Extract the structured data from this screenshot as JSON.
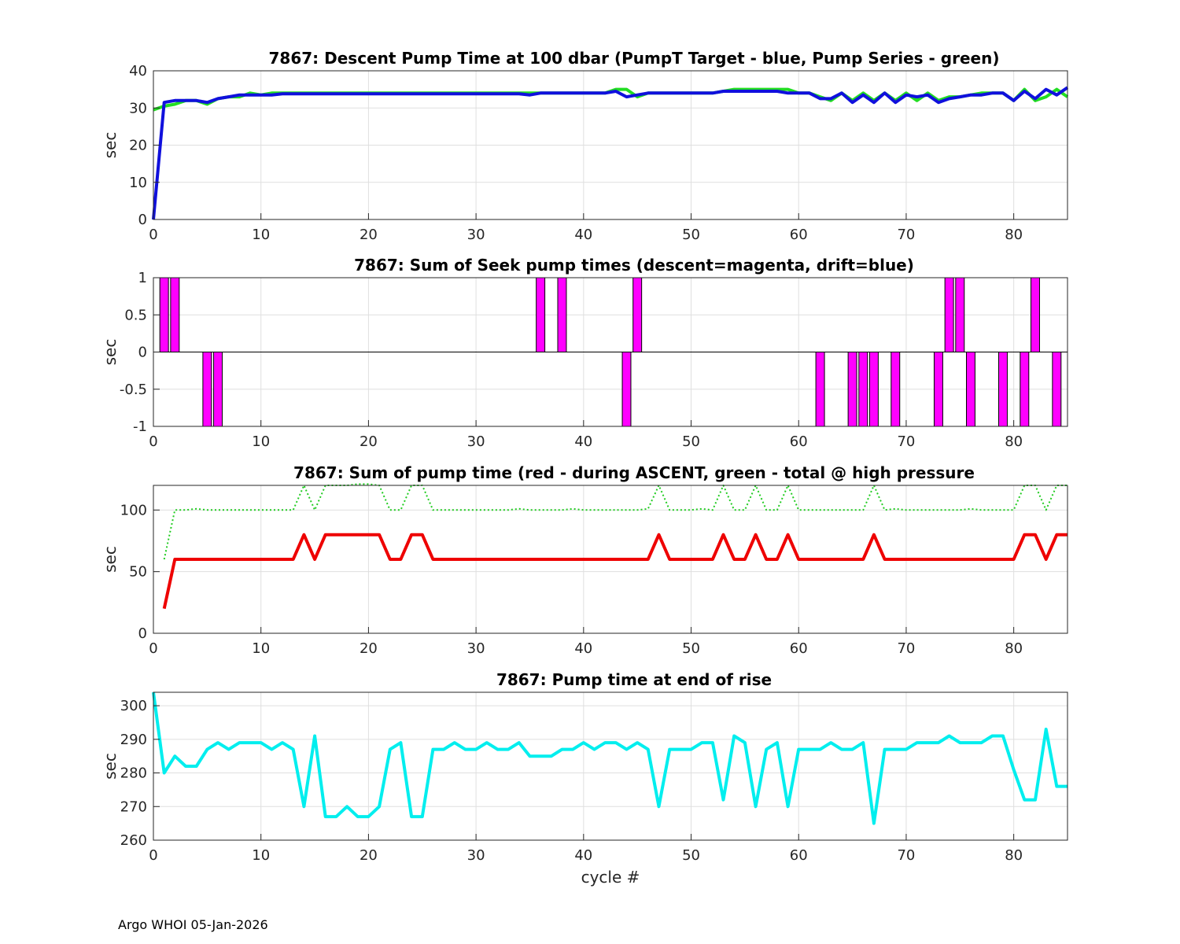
{
  "footer": "Argo WHOI 05-Jan-2026",
  "chart_data": [
    {
      "type": "line",
      "title": "7867: Descent Pump Time at 100 dbar (PumpT Target - blue, Pump Series - green)",
      "xlabel": "",
      "ylabel": "sec",
      "xlim": [
        0,
        85
      ],
      "ylim": [
        0,
        40
      ],
      "xticks": [
        0,
        10,
        20,
        30,
        40,
        50,
        60,
        70,
        80
      ],
      "yticks": [
        0,
        10,
        20,
        30,
        40
      ],
      "series": [
        {
          "name": "Pump Series",
          "color": "#22dd22",
          "style": "solid",
          "width": 4,
          "x": [
            0,
            1,
            2,
            3,
            4,
            5,
            6,
            7,
            8,
            9,
            10,
            11,
            12,
            13,
            14,
            15,
            16,
            17,
            18,
            19,
            20,
            21,
            22,
            23,
            24,
            25,
            26,
            27,
            28,
            29,
            30,
            31,
            32,
            33,
            34,
            35,
            36,
            37,
            38,
            39,
            40,
            41,
            42,
            43,
            44,
            45,
            46,
            47,
            48,
            49,
            50,
            51,
            52,
            53,
            54,
            55,
            56,
            57,
            58,
            59,
            60,
            61,
            62,
            63,
            64,
            65,
            66,
            67,
            68,
            69,
            70,
            71,
            72,
            73,
            74,
            75,
            76,
            77,
            78,
            79,
            80,
            81,
            82,
            83,
            84,
            85
          ],
          "values": [
            29.5,
            30.5,
            31,
            32,
            32,
            31,
            32.5,
            33,
            33,
            34,
            33.5,
            34,
            34,
            34,
            34,
            34,
            34,
            34,
            34,
            34,
            34,
            34,
            34,
            34,
            34,
            34,
            34,
            34,
            34,
            34,
            34,
            34,
            34,
            34,
            34,
            34,
            34,
            34,
            34,
            34,
            34,
            34,
            34,
            35,
            35,
            33,
            34,
            34,
            34,
            34,
            34,
            34,
            34,
            34.5,
            35,
            35,
            35,
            35,
            35,
            35,
            34,
            34,
            33,
            32,
            34,
            32,
            34,
            32,
            34,
            32,
            34,
            32,
            34,
            32,
            33,
            33,
            33.5,
            34,
            34,
            34,
            32,
            35,
            32,
            33,
            35,
            33
          ]
        },
        {
          "name": "PumpT Target",
          "color": "#1010dd",
          "style": "solid",
          "width": 4,
          "x": [
            0,
            1,
            2,
            3,
            4,
            5,
            6,
            7,
            8,
            9,
            10,
            11,
            12,
            13,
            14,
            15,
            16,
            17,
            18,
            19,
            20,
            21,
            22,
            23,
            24,
            25,
            26,
            27,
            28,
            29,
            30,
            31,
            32,
            33,
            34,
            35,
            36,
            37,
            38,
            39,
            40,
            41,
            42,
            43,
            44,
            45,
            46,
            47,
            48,
            49,
            50,
            51,
            52,
            53,
            54,
            55,
            56,
            57,
            58,
            59,
            60,
            61,
            62,
            63,
            64,
            65,
            66,
            67,
            68,
            69,
            70,
            71,
            72,
            73,
            74,
            75,
            76,
            77,
            78,
            79,
            80,
            81,
            82,
            83,
            84,
            85
          ],
          "values": [
            0,
            31.5,
            32,
            32,
            32,
            31.5,
            32.5,
            33,
            33.5,
            33.5,
            33.5,
            33.5,
            33.8,
            33.8,
            33.8,
            33.8,
            33.8,
            33.8,
            33.8,
            33.8,
            33.8,
            33.8,
            33.8,
            33.8,
            33.8,
            33.8,
            33.8,
            33.8,
            33.8,
            33.8,
            33.8,
            33.8,
            33.8,
            33.8,
            33.8,
            33.5,
            34,
            34,
            34,
            34,
            34,
            34,
            34,
            34.5,
            33,
            33.5,
            34,
            34,
            34,
            34,
            34,
            34,
            34,
            34.5,
            34.5,
            34.5,
            34.5,
            34.5,
            34.5,
            34,
            34,
            34,
            32.5,
            32.5,
            34,
            31.5,
            33.5,
            31.5,
            34,
            31.5,
            33.5,
            33,
            33.5,
            31.5,
            32.5,
            33,
            33.5,
            33.5,
            34,
            34,
            32,
            34.5,
            32.5,
            35,
            33.5,
            35.5
          ]
        }
      ]
    },
    {
      "type": "bar",
      "title": "7867: Sum of Seek pump times (descent=magenta, drift=blue)",
      "xlabel": "",
      "ylabel": "sec",
      "xlim": [
        0,
        85
      ],
      "ylim": [
        -1,
        1
      ],
      "xticks": [
        0,
        10,
        20,
        30,
        40,
        50,
        60,
        70,
        80
      ],
      "yticks": [
        -1,
        -0.5,
        0,
        0.5,
        1
      ],
      "series": [
        {
          "name": "descent",
          "color": "#ff00ff",
          "x": [
            1,
            2,
            5,
            6,
            36,
            38,
            44,
            45,
            62,
            65,
            66,
            67,
            69,
            73,
            74,
            75,
            76,
            79,
            81,
            82,
            84
          ],
          "values": [
            1,
            1,
            -1,
            -1,
            1,
            1,
            -1,
            1,
            -1,
            -1,
            -1,
            -1,
            -1,
            -1,
            1,
            1,
            -1,
            -1,
            -1,
            1,
            -1
          ]
        }
      ]
    },
    {
      "type": "line",
      "title": "7867: Sum of pump time (red - during ASCENT, green - total @ high pressure",
      "xlabel": "",
      "ylabel": "sec",
      "xlim": [
        0,
        85
      ],
      "ylim": [
        0,
        120
      ],
      "xticks": [
        0,
        10,
        20,
        30,
        40,
        50,
        60,
        70,
        80
      ],
      "yticks": [
        0,
        50,
        100
      ],
      "series": [
        {
          "name": "during ASCENT",
          "color": "#ee0000",
          "style": "solid",
          "width": 4,
          "x": [
            1,
            2,
            3,
            4,
            5,
            6,
            7,
            8,
            9,
            10,
            11,
            12,
            13,
            14,
            15,
            16,
            17,
            18,
            19,
            20,
            21,
            22,
            23,
            24,
            25,
            26,
            27,
            28,
            29,
            30,
            31,
            32,
            33,
            34,
            35,
            36,
            37,
            38,
            39,
            40,
            41,
            42,
            43,
            44,
            45,
            46,
            47,
            48,
            49,
            50,
            51,
            52,
            53,
            54,
            55,
            56,
            57,
            58,
            59,
            60,
            61,
            62,
            63,
            64,
            65,
            66,
            67,
            68,
            69,
            70,
            71,
            72,
            73,
            74,
            75,
            76,
            77,
            78,
            79,
            80,
            81,
            82,
            83,
            84,
            85
          ],
          "values": [
            20,
            60,
            60,
            60,
            60,
            60,
            60,
            60,
            60,
            60,
            60,
            60,
            60,
            80,
            60,
            80,
            80,
            80,
            80,
            80,
            80,
            60,
            60,
            80,
            80,
            60,
            60,
            60,
            60,
            60,
            60,
            60,
            60,
            60,
            60,
            60,
            60,
            60,
            60,
            60,
            60,
            60,
            60,
            60,
            60,
            60,
            80,
            60,
            60,
            60,
            60,
            60,
            80,
            60,
            60,
            80,
            60,
            60,
            80,
            60,
            60,
            60,
            60,
            60,
            60,
            60,
            80,
            60,
            60,
            60,
            60,
            60,
            60,
            60,
            60,
            60,
            60,
            60,
            60,
            60,
            80,
            80,
            60,
            80,
            80
          ]
        },
        {
          "name": "total @ high pressure",
          "color": "#22cc22",
          "style": "dotted",
          "width": 2,
          "x": [
            1,
            2,
            3,
            4,
            5,
            6,
            7,
            8,
            9,
            10,
            11,
            12,
            13,
            14,
            15,
            16,
            17,
            18,
            19,
            20,
            21,
            22,
            23,
            24,
            25,
            26,
            27,
            28,
            29,
            30,
            31,
            32,
            33,
            34,
            35,
            36,
            37,
            38,
            39,
            40,
            41,
            42,
            43,
            44,
            45,
            46,
            47,
            48,
            49,
            50,
            51,
            52,
            53,
            54,
            55,
            56,
            57,
            58,
            59,
            60,
            61,
            62,
            63,
            64,
            65,
            66,
            67,
            68,
            69,
            70,
            71,
            72,
            73,
            74,
            75,
            76,
            77,
            78,
            79,
            80,
            81,
            82,
            83,
            84,
            85
          ],
          "values": [
            60,
            100,
            100,
            101,
            100,
            100,
            100,
            100,
            100,
            100,
            100,
            100,
            100,
            120,
            100,
            120,
            120,
            120,
            121,
            121,
            120,
            100,
            100,
            120,
            120,
            100,
            100,
            100,
            100,
            100,
            100,
            100,
            100,
            101,
            100,
            100,
            100,
            100,
            101,
            100,
            100,
            100,
            100,
            100,
            100,
            101,
            120,
            100,
            100,
            100,
            101,
            100,
            120,
            100,
            100,
            120,
            100,
            100,
            120,
            100,
            100,
            100,
            100,
            100,
            100,
            100,
            120,
            100,
            101,
            100,
            100,
            100,
            100,
            100,
            100,
            101,
            100,
            100,
            100,
            100,
            120,
            120,
            100,
            120,
            120
          ]
        }
      ]
    },
    {
      "type": "line",
      "title": "7867: Pump time at end of rise",
      "xlabel": "cycle #",
      "ylabel": "sec",
      "xlim": [
        0,
        85
      ],
      "ylim": [
        260,
        304
      ],
      "xticks": [
        0,
        10,
        20,
        30,
        40,
        50,
        60,
        70,
        80
      ],
      "yticks": [
        260,
        270,
        280,
        290,
        300
      ],
      "series": [
        {
          "name": "end of rise",
          "color": "#00eeee",
          "style": "solid",
          "width": 4,
          "x": [
            0,
            1,
            2,
            3,
            4,
            5,
            6,
            7,
            8,
            9,
            10,
            11,
            12,
            13,
            14,
            15,
            16,
            17,
            18,
            19,
            20,
            21,
            22,
            23,
            24,
            25,
            26,
            27,
            28,
            29,
            30,
            31,
            32,
            33,
            34,
            35,
            36,
            37,
            38,
            39,
            40,
            41,
            42,
            43,
            44,
            45,
            46,
            47,
            48,
            49,
            50,
            51,
            52,
            53,
            54,
            55,
            56,
            57,
            58,
            59,
            60,
            61,
            62,
            63,
            64,
            65,
            66,
            67,
            68,
            69,
            70,
            71,
            72,
            73,
            74,
            75,
            76,
            77,
            78,
            79,
            80,
            81,
            82,
            83,
            84,
            85
          ],
          "values": [
            304,
            280,
            285,
            282,
            282,
            287,
            289,
            287,
            289,
            289,
            289,
            287,
            289,
            287,
            270,
            291,
            267,
            267,
            270,
            267,
            267,
            270,
            287,
            289,
            267,
            267,
            287,
            287,
            289,
            287,
            287,
            289,
            287,
            287,
            289,
            285,
            285,
            285,
            287,
            287,
            289,
            287,
            289,
            289,
            287,
            289,
            287,
            270,
            287,
            287,
            287,
            289,
            289,
            272,
            291,
            289,
            270,
            287,
            289,
            270,
            287,
            287,
            287,
            289,
            287,
            287,
            289,
            265,
            287,
            287,
            287,
            289,
            289,
            289,
            291,
            289,
            289,
            289,
            291,
            291,
            281,
            272,
            272,
            293,
            276,
            276
          ]
        }
      ]
    }
  ]
}
